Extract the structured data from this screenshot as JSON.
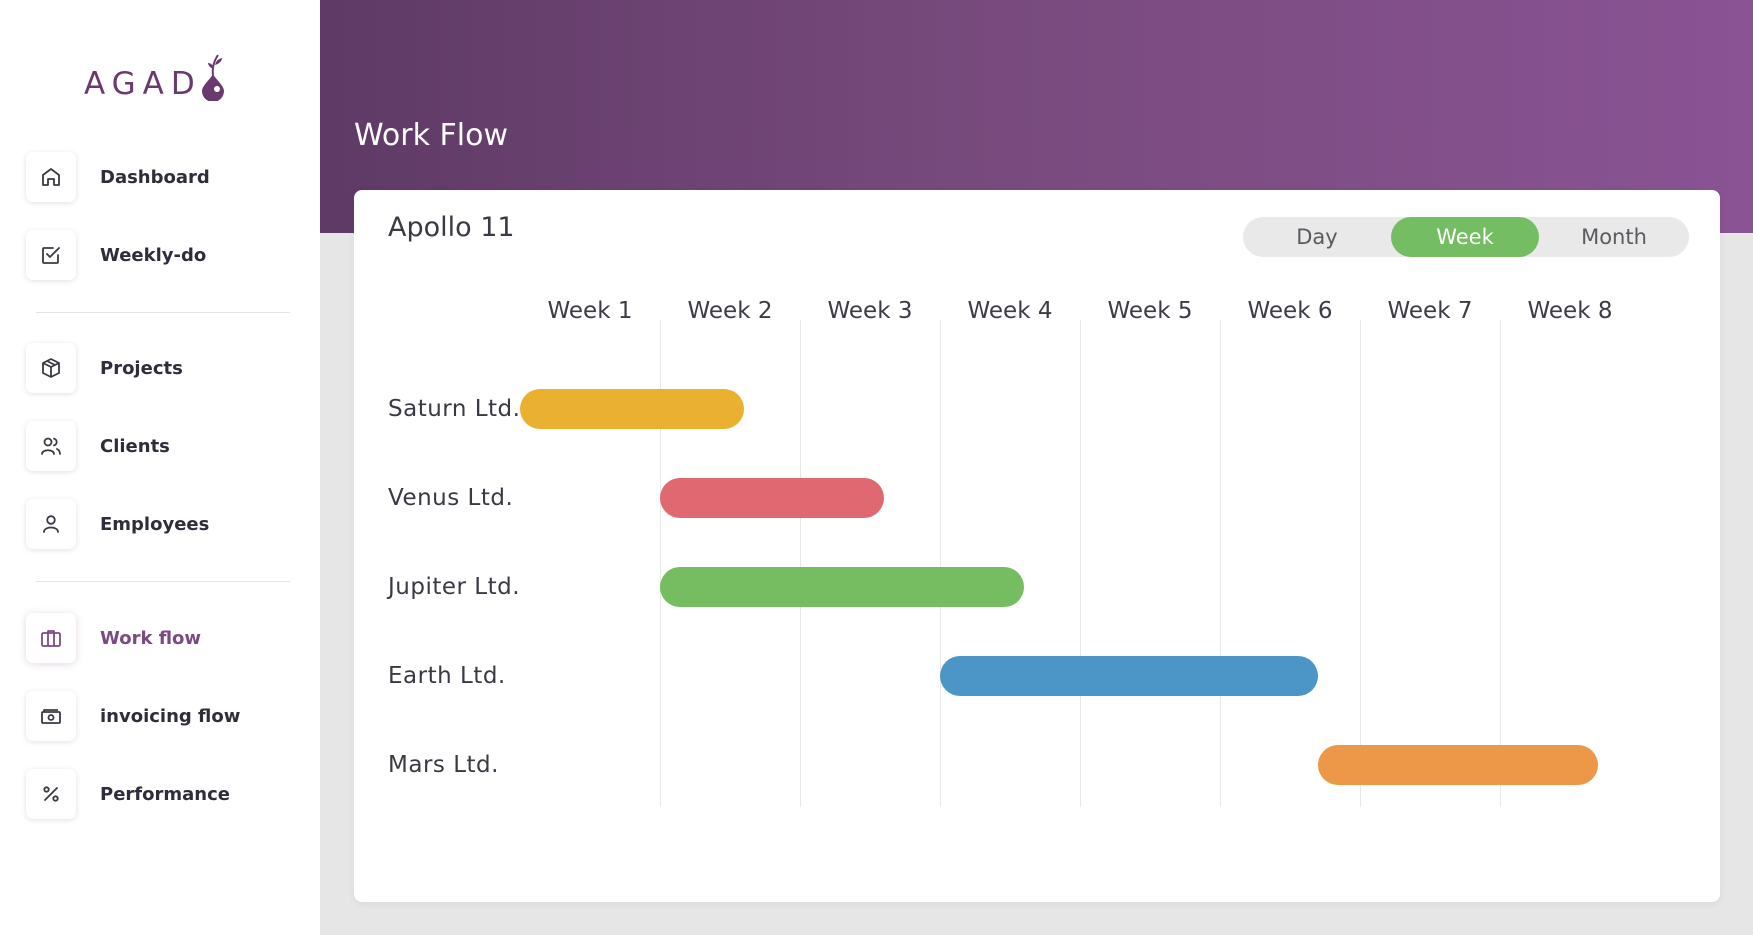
{
  "brand": {
    "logo_text": "AGAD",
    "accent": "#7a4b82"
  },
  "sidebar": {
    "items": [
      {
        "key": "dashboard",
        "label": "Dashboard",
        "icon": "home-icon"
      },
      {
        "key": "weekly-do",
        "label": "Weekly-do",
        "icon": "checkbox-icon"
      },
      {
        "key": "projects",
        "label": "Projects",
        "icon": "box-icon"
      },
      {
        "key": "clients",
        "label": "Clients",
        "icon": "users-icon"
      },
      {
        "key": "employees",
        "label": "Employees",
        "icon": "user-icon"
      },
      {
        "key": "work-flow",
        "label": "Work flow",
        "icon": "briefcase-icon",
        "active": true
      },
      {
        "key": "invoicing-flow",
        "label": "invoicing flow",
        "icon": "cash-icon"
      },
      {
        "key": "performance",
        "label": "Performance",
        "icon": "percent-icon"
      }
    ]
  },
  "header": {
    "title": "Work Flow"
  },
  "main": {
    "project_title": "Apollo 11",
    "view_toggle": {
      "options": [
        "Day",
        "Week",
        "Month"
      ],
      "selected": "Week",
      "selected_color": "#74bd62"
    }
  },
  "chart_data": {
    "type": "gantt",
    "columns": [
      "Week 1",
      "Week 2",
      "Week 3",
      "Week 4",
      "Week 5",
      "Week 6",
      "Week 7",
      "Week 8"
    ],
    "tasks": [
      {
        "name": "Saturn Ltd.",
        "start": 1.0,
        "end": 2.6,
        "color": "#eab02f"
      },
      {
        "name": "Venus Ltd.",
        "start": 2.0,
        "end": 3.6,
        "color": "#e06870"
      },
      {
        "name": "Jupiter Ltd.",
        "start": 2.0,
        "end": 4.6,
        "color": "#76bd62"
      },
      {
        "name": "Earth Ltd.",
        "start": 4.0,
        "end": 6.7,
        "color": "#4b95c7"
      },
      {
        "name": "Mars Ltd.",
        "start": 6.7,
        "end": 8.7,
        "color": "#ed9848"
      }
    ]
  }
}
